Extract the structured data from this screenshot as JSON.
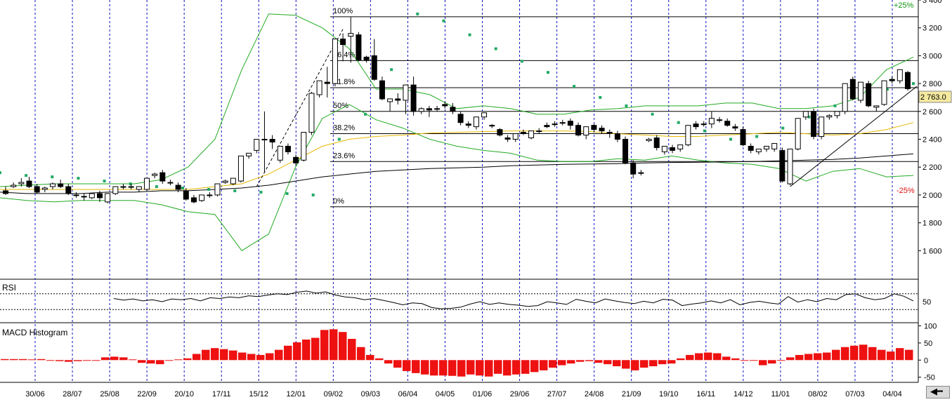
{
  "chart_data": [
    {
      "type": "candlestick",
      "panel": "price",
      "ylim": [
        1400,
        3400
      ],
      "y_ticks": [
        "3 400",
        "3 200",
        "3 000",
        "2 800",
        "2 600",
        "2 400",
        "2 200",
        "2 000",
        "1 800",
        "1 600"
      ],
      "x_ticks": [
        "30/06",
        "28/07",
        "25/08",
        "22/09",
        "20/10",
        "17/11",
        "15/12",
        "12/01",
        "09/02",
        "09/03",
        "06/04",
        "04/05",
        "01/06",
        "29/06",
        "27/07",
        "24/08",
        "21/09",
        "19/10",
        "16/11",
        "14/12",
        "11/01",
        "08/02",
        "07/03",
        "04/04"
      ],
      "last_value": "2 763.0",
      "percent_labels": {
        "up": "+25%",
        "down": "-25%"
      },
      "fibonacci": [
        {
          "label": "100%",
          "value": 3280
        },
        {
          "label": "76.4%",
          "value": 2965
        },
        {
          "label": "61.8%",
          "value": 2770
        },
        {
          "label": "50%",
          "value": 2600
        },
        {
          "label": "38.2%",
          "value": 2440
        },
        {
          "label": "23.6%",
          "value": 2240
        },
        {
          "label": "0%",
          "value": 1915
        }
      ],
      "candles": [
        [
          2030,
          2060,
          2010,
          2000
        ],
        [
          2060,
          2090,
          2070,
          2050
        ],
        [
          2080,
          2120,
          2090,
          2060
        ],
        [
          2100,
          2130,
          2060,
          2050
        ],
        [
          2060,
          2080,
          2020,
          2010
        ],
        [
          2040,
          2060,
          2050,
          2020
        ],
        [
          2060,
          2090,
          2080,
          2040
        ],
        [
          2080,
          2110,
          2060,
          2050
        ],
        [
          2060,
          2080,
          2010,
          2000
        ],
        [
          2000,
          2020,
          2000,
          1980
        ],
        [
          1990,
          2010,
          1990,
          1960
        ],
        [
          1980,
          2000,
          2010,
          1970
        ],
        [
          2010,
          2030,
          1980,
          1950
        ],
        [
          1950,
          1990,
          2010,
          1940
        ],
        [
          2010,
          2040,
          2060,
          2000
        ],
        [
          2060,
          2080,
          2060,
          2040
        ],
        [
          2060,
          2080,
          2060,
          2040
        ],
        [
          2040,
          2060,
          2060,
          2020
        ],
        [
          2040,
          2110,
          2120,
          2030
        ],
        [
          2140,
          2160,
          2150,
          2120
        ],
        [
          2160,
          2180,
          2100,
          2080
        ],
        [
          2090,
          2110,
          2090,
          2070
        ],
        [
          2070,
          2090,
          2040,
          2020
        ],
        [
          2030,
          2050,
          1970,
          1960
        ],
        [
          1980,
          2000,
          1950,
          1940
        ],
        [
          1960,
          1990,
          2000,
          1950
        ],
        [
          2000,
          2020,
          2000,
          1980
        ],
        [
          2000,
          2020,
          2080,
          1990
        ],
        [
          2090,
          2110,
          2100,
          2080
        ],
        [
          2080,
          2110,
          2120,
          2070
        ],
        [
          2100,
          2130,
          2280,
          2090
        ],
        [
          2280,
          2300,
          2300,
          2260
        ],
        [
          2320,
          2340,
          2400,
          2300
        ],
        [
          2400,
          2600,
          2400,
          2160
        ],
        [
          2400,
          2430,
          2380,
          2330
        ],
        [
          2250,
          2280,
          2350,
          2230
        ],
        [
          2350,
          2370,
          2310,
          2290
        ],
        [
          2270,
          2290,
          2230,
          2210
        ],
        [
          2250,
          2430,
          2450,
          2240
        ],
        [
          2450,
          2740,
          2730,
          2430
        ],
        [
          2720,
          2780,
          2820,
          2700
        ],
        [
          2810,
          2920,
          2800,
          2700
        ],
        [
          2800,
          2850,
          3120,
          2780
        ],
        [
          3120,
          3160,
          3080,
          2960
        ],
        [
          3140,
          3280,
          3160,
          2950
        ],
        [
          3150,
          3170,
          2970,
          2960
        ],
        [
          2990,
          3000,
          2970,
          2950
        ],
        [
          3000,
          3120,
          2830,
          2820
        ],
        [
          2820,
          2850,
          2690,
          2680
        ],
        [
          2670,
          2690,
          2690,
          2600
        ],
        [
          2690,
          2730,
          2680,
          2650
        ],
        [
          2680,
          2700,
          2790,
          2580
        ],
        [
          2790,
          2850,
          2600,
          2570
        ],
        [
          2600,
          2630,
          2620,
          2580
        ],
        [
          2620,
          2640,
          2610,
          2560
        ],
        [
          2620,
          2640,
          2620,
          2600
        ],
        [
          2650,
          2670,
          2640,
          2620
        ],
        [
          2630,
          2660,
          2600,
          2580
        ],
        [
          2580,
          2600,
          2520,
          2500
        ],
        [
          2510,
          2530,
          2500,
          2480
        ],
        [
          2490,
          2510,
          2560,
          2470
        ],
        [
          2560,
          2580,
          2590,
          2540
        ],
        [
          2500,
          2510,
          2500,
          2480
        ],
        [
          2470,
          2480,
          2430,
          2420
        ],
        [
          2410,
          2430,
          2400,
          2380
        ],
        [
          2400,
          2420,
          2440,
          2380
        ],
        [
          2450,
          2470,
          2450,
          2430
        ],
        [
          2410,
          2420,
          2460,
          2400
        ],
        [
          2460,
          2480,
          2460,
          2440
        ],
        [
          2500,
          2520,
          2490,
          2480
        ],
        [
          2510,
          2530,
          2510,
          2490
        ],
        [
          2520,
          2540,
          2520,
          2500
        ],
        [
          2530,
          2550,
          2500,
          2470
        ],
        [
          2500,
          2520,
          2430,
          2420
        ],
        [
          2430,
          2450,
          2490,
          2400
        ],
        [
          2500,
          2510,
          2470,
          2450
        ],
        [
          2480,
          2500,
          2460,
          2440
        ],
        [
          2450,
          2470,
          2450,
          2410
        ],
        [
          2440,
          2460,
          2400,
          2380
        ],
        [
          2400,
          2420,
          2230,
          2220
        ],
        [
          2230,
          2250,
          2150,
          2120
        ],
        [
          2160,
          2180,
          2160,
          2140
        ],
        [
          2390,
          2410,
          2400,
          2380
        ],
        [
          2410,
          2430,
          2340,
          2320
        ],
        [
          2310,
          2330,
          2350,
          2290
        ],
        [
          2340,
          2360,
          2320,
          2300
        ],
        [
          2330,
          2350,
          2360,
          2310
        ],
        [
          2360,
          2380,
          2500,
          2350
        ],
        [
          2510,
          2530,
          2490,
          2470
        ],
        [
          2510,
          2530,
          2510,
          2490
        ],
        [
          2510,
          2600,
          2550,
          2480
        ],
        [
          2540,
          2560,
          2540,
          2520
        ],
        [
          2530,
          2550,
          2500,
          2490
        ],
        [
          2490,
          2510,
          2480,
          2460
        ],
        [
          2470,
          2490,
          2360,
          2350
        ],
        [
          2350,
          2370,
          2320,
          2300
        ],
        [
          2310,
          2330,
          2330,
          2290
        ],
        [
          2330,
          2350,
          2350,
          2310
        ],
        [
          2330,
          2350,
          2370,
          2310
        ],
        [
          2320,
          2340,
          2100,
          2090
        ],
        [
          2080,
          2100,
          2330,
          2070
        ],
        [
          2330,
          2350,
          2550,
          2320
        ],
        [
          2560,
          2580,
          2600,
          2540
        ],
        [
          2600,
          2620,
          2420,
          2400
        ],
        [
          2420,
          2440,
          2560,
          2400
        ],
        [
          2560,
          2580,
          2570,
          2540
        ],
        [
          2570,
          2590,
          2600,
          2550
        ],
        [
          2600,
          2620,
          2800,
          2580
        ],
        [
          2830,
          2850,
          2690,
          2680
        ],
        [
          2680,
          2700,
          2810,
          2660
        ],
        [
          2800,
          2820,
          2640,
          2630
        ],
        [
          2630,
          2640,
          2640,
          2600
        ],
        [
          2650,
          2670,
          2820,
          2640
        ],
        [
          2830,
          2850,
          2820,
          2800
        ],
        [
          2820,
          2840,
          2900,
          2800
        ],
        [
          2880,
          2890,
          2763,
          2750
        ]
      ],
      "ma_slow": [
        2020,
        2010,
        2010,
        2010,
        2020,
        2020,
        2030,
        2030,
        2040,
        2050,
        2070,
        2100,
        2130,
        2150,
        2170,
        2180,
        2190,
        2195,
        2200,
        2210,
        2215,
        2220,
        2222,
        2225,
        2230,
        2233,
        2235,
        2238,
        2240,
        2245,
        2250,
        2255,
        2265,
        2280,
        2295
      ],
      "ma_mid": [
        2040,
        2040,
        2040,
        2040,
        2040,
        2040,
        2040,
        2040,
        2060,
        2080,
        2150,
        2250,
        2350,
        2400,
        2420,
        2430,
        2445,
        2450,
        2455,
        2460,
        2460,
        2460,
        2455,
        2440,
        2430,
        2420,
        2420,
        2430,
        2440,
        2450,
        2440,
        2430,
        2440,
        2470,
        2520
      ],
      "bb_upper": [
        2060,
        2070,
        2080,
        2080,
        2080,
        2080,
        2110,
        2200,
        2400,
        2900,
        3300,
        3290,
        3200,
        3050,
        2760,
        2760,
        2720,
        2620,
        2640,
        2620,
        2580,
        2580,
        2610,
        2620,
        2640,
        2640,
        2640,
        2660,
        2660,
        2620,
        2620,
        2640,
        2700,
        2900,
        2990
      ],
      "bb_lower": [
        1980,
        1960,
        1950,
        1960,
        1960,
        1960,
        1930,
        1880,
        1860,
        1600,
        1720,
        2200,
        2550,
        2650,
        2540,
        2480,
        2400,
        2350,
        2320,
        2300,
        2250,
        2240,
        2240,
        2260,
        2250,
        2280,
        2250,
        2230,
        2220,
        2190,
        2100,
        2170,
        2190,
        2130,
        2140
      ],
      "sar": [
        2160,
        2140,
        2130,
        2120,
        2100,
        2080,
        2060,
        2050,
        2040,
        2030,
        2020,
        2010,
        2000,
        2400,
        2580,
        2900,
        3300,
        3250,
        3150,
        3050,
        2960,
        2880,
        2780,
        2700,
        2640,
        2580,
        2520,
        2460,
        2400,
        2420,
        2480,
        2560,
        2640,
        2700,
        2760,
        2800
      ],
      "trendline_up": [
        [
          1955,
          2060
        ],
        [
          3275,
          3190
        ]
      ],
      "trendline_recent": [
        [
          2060,
          2080
        ],
        [
          2780,
          2900
        ]
      ]
    },
    {
      "type": "line",
      "panel": "RSI",
      "title": "RSI",
      "y_tick": "50",
      "values": [
        58,
        54,
        57,
        52,
        55,
        50,
        57,
        55,
        58,
        52,
        60,
        58,
        62,
        60,
        65,
        63,
        67,
        70,
        68,
        74,
        77,
        72,
        75,
        67,
        62,
        60,
        55,
        58,
        53,
        48,
        42,
        47,
        45,
        35,
        32,
        33,
        36,
        44,
        50,
        43,
        47,
        43,
        41,
        38,
        40,
        50,
        47,
        43,
        56,
        51,
        47,
        57,
        52,
        48,
        45,
        51,
        47,
        56,
        54,
        40,
        44,
        47,
        52,
        47,
        55,
        42,
        48,
        51,
        47,
        44,
        63,
        49,
        55,
        50,
        58,
        55,
        68,
        70,
        60,
        55,
        58,
        70,
        64,
        52
      ]
    },
    {
      "type": "bar",
      "panel": "MACD Histogram",
      "title": "MACD Histogram",
      "y_ticks": [
        "100",
        "50",
        "0",
        "-50"
      ],
      "ylim": [
        -65,
        105
      ],
      "values": [
        3,
        3,
        3,
        2,
        3,
        0,
        -3,
        -5,
        -3,
        0,
        0,
        8,
        10,
        8,
        2,
        -8,
        -10,
        -12,
        0,
        2,
        5,
        18,
        30,
        35,
        32,
        28,
        22,
        18,
        15,
        20,
        30,
        42,
        52,
        60,
        65,
        88,
        90,
        82,
        62,
        38,
        15,
        5,
        -10,
        -22,
        -32,
        -38,
        -42,
        -45,
        -45,
        -46,
        -48,
        -42,
        -45,
        -48,
        -40,
        -45,
        -42,
        -40,
        -35,
        -30,
        -22,
        -15,
        -10,
        -5,
        -3,
        -8,
        -12,
        -18,
        -25,
        -30,
        -22,
        -18,
        -12,
        -10,
        5,
        15,
        20,
        22,
        20,
        10,
        5,
        0,
        -2,
        -15,
        -10,
        0,
        8,
        15,
        18,
        20,
        22,
        30,
        38,
        42,
        45,
        38,
        30,
        25,
        35,
        30
      ]
    }
  ]
}
